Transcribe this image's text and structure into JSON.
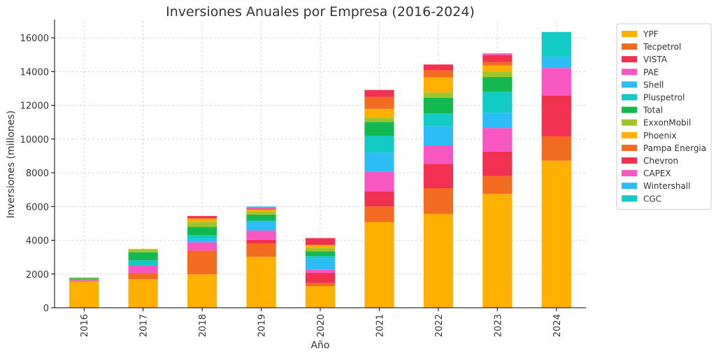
{
  "chart_data": {
    "type": "bar",
    "stacked": true,
    "title": "Inversiones Anuales por Empresa (2016-2024)",
    "xlabel": "Año",
    "ylabel": "Inversiones (millones)",
    "ylim": [
      0,
      17000
    ],
    "yticks": [
      0,
      2000,
      4000,
      6000,
      8000,
      10000,
      12000,
      14000,
      16000
    ],
    "grid": true,
    "legend_position": "right",
    "categories": [
      "2016",
      "2017",
      "2018",
      "2019",
      "2020",
      "2021",
      "2022",
      "2023",
      "2024"
    ],
    "series": [
      {
        "name": "YPF",
        "color": "#FFB000",
        "values": [
          1550,
          1700,
          1980,
          3020,
          1280,
          5080,
          5560,
          6750,
          8720
        ]
      },
      {
        "name": "Tecpetrol",
        "color": "#F26B20",
        "values": [
          50,
          350,
          1400,
          780,
          200,
          930,
          1530,
          1060,
          1440
        ]
      },
      {
        "name": "VISTA",
        "color": "#F2304F",
        "values": [
          0,
          0,
          0,
          230,
          590,
          890,
          1430,
          1440,
          2420
        ]
      },
      {
        "name": "PAE",
        "color": "#F857C1",
        "values": [
          50,
          480,
          500,
          550,
          180,
          1150,
          1100,
          1400,
          1630
        ]
      },
      {
        "name": "Shell",
        "color": "#2DBDF6",
        "values": [
          0,
          0,
          200,
          580,
          690,
          1150,
          1130,
          910,
          0
        ]
      },
      {
        "name": "Pluspetrol",
        "color": "#12CBC4",
        "values": [
          50,
          280,
          220,
          0,
          120,
          1000,
          770,
          1240,
          0
        ]
      },
      {
        "name": "Total",
        "color": "#14B850",
        "values": [
          50,
          480,
          490,
          360,
          280,
          820,
          920,
          880,
          0
        ]
      },
      {
        "name": "ExxonMobil",
        "color": "#A1C42A",
        "values": [
          20,
          150,
          300,
          200,
          210,
          250,
          320,
          320,
          0
        ]
      },
      {
        "name": "Phoenix",
        "color": "#FFB000",
        "values": [
          30,
          50,
          200,
          100,
          180,
          520,
          900,
          360,
          0
        ]
      },
      {
        "name": "Pampa Energia",
        "color": "#F26B20",
        "values": [
          0,
          0,
          0,
          0,
          0,
          700,
          420,
          200,
          0
        ]
      },
      {
        "name": "Chevron",
        "color": "#F2304F",
        "values": [
          0,
          0,
          150,
          50,
          400,
          420,
          340,
          420,
          0
        ]
      },
      {
        "name": "CAPEX",
        "color": "#F857C1",
        "values": [
          0,
          0,
          0,
          50,
          0,
          0,
          0,
          100,
          0
        ]
      },
      {
        "name": "Wintershall",
        "color": "#2DBDF6",
        "values": [
          0,
          0,
          0,
          80,
          0,
          0,
          0,
          0,
          660
        ]
      },
      {
        "name": "CGC",
        "color": "#12CBC4",
        "values": [
          0,
          0,
          0,
          0,
          0,
          0,
          0,
          0,
          1480
        ]
      }
    ]
  }
}
